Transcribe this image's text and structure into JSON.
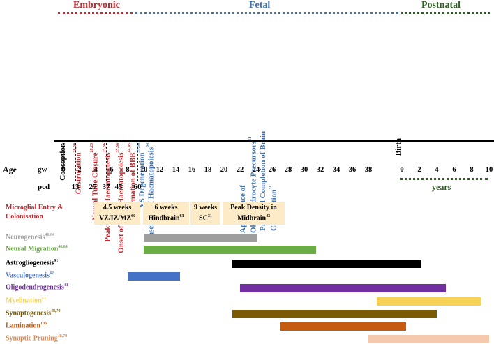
{
  "phases": [
    {
      "label": "Embryonic",
      "color": "#c0282d"
    },
    {
      "label": "Fetal",
      "color": "#3f73b3"
    },
    {
      "label": "Postnatal",
      "color": "#2f5f23"
    }
  ],
  "axis": {
    "age_label": "Age",
    "gw_label": "gw",
    "pcd_label": "pcd",
    "years_label": "years",
    "gw_ticks": [
      "0",
      "2",
      "4",
      "6",
      "8",
      "10",
      "12",
      "14",
      "16",
      "18",
      "20",
      "22",
      "24",
      "26",
      "28",
      "30",
      "32",
      "34",
      "36",
      "38"
    ],
    "year_ticks": [
      "0",
      "2",
      "4",
      "6",
      "8",
      "10"
    ],
    "pcd_values": [
      "13",
      "27",
      "37",
      "45",
      "60"
    ],
    "birth_label": "Birth"
  },
  "events": [
    {
      "text": "Conception",
      "ref": "",
      "color": "#000000"
    },
    {
      "text": "Gastrulation",
      "ref": "28,29",
      "color": "#c0282d"
    },
    {
      "text": "Neural Tube Closure",
      "ref": "28,29",
      "color": "#c0282d"
    },
    {
      "text": "Peak of YS Haematopoiesis",
      "ref": "35,36",
      "color": "#c0282d"
    },
    {
      "text": "Onset of Liver Haematopoiesis",
      "ref": "35,36",
      "color": "#c0282d"
    },
    {
      "text": "Formation of BBB",
      "ref": "44,45",
      "color": "#c0282d"
    },
    {
      "text": "YS Degeneration",
      "ref": "35,36",
      "color": "#3f73b3"
    },
    {
      "text": "Onset of BM Haematopoiesis",
      "ref": "34",
      "color": "#3f73b3"
    },
    {
      "text": "Appearance of Oligodendrocyte Precursors",
      "ref": "41",
      "color": "#3f73b3"
    },
    {
      "text": "Proposed Completion of Brain Colonisation",
      "ref": "31",
      "color": "#3f73b3"
    }
  ],
  "microglia": {
    "label_line1": "Microglial Entry &",
    "label_line2": "Colonisation",
    "label_color": "#c0282d",
    "box_color": "#fcebc6",
    "boxes": [
      {
        "line1": "4.5 weeks",
        "line2": "VZ/IZ/MZ",
        "ref": "60"
      },
      {
        "line1": "6 weeks",
        "line2": "Hindbrain",
        "ref": "63"
      },
      {
        "line1": "9 weeks",
        "line2": "SC",
        "ref": "31"
      },
      {
        "line1": "Peak Density in",
        "line2": "Midbrain",
        "ref": "43"
      }
    ]
  },
  "processes": [
    {
      "name": "Neurogenesis",
      "ref": "40,64",
      "color": "#9e9e9e",
      "start_gw": 10,
      "end_gw": 24.2
    },
    {
      "name": "Neural Migration",
      "ref": "40,64",
      "color": "#6aad45",
      "start_gw": 10,
      "end_gw": 31.5
    },
    {
      "name": "Astrogliogenesis",
      "ref": "91",
      "color": "#000000",
      "start_gw": 21,
      "end_gw": 2.2
    },
    {
      "name": "Vasculogenesis",
      "ref": "42",
      "color": "#4472c4",
      "start_gw": 8,
      "end_gw": 14.5
    },
    {
      "name": "Oligodendrogenesis",
      "ref": "41",
      "color": "#7030a0",
      "start_gw": 22,
      "end_gw": 5
    },
    {
      "name": "Myelination",
      "ref": "41",
      "color": "#f7d154",
      "start_gw": 39,
      "end_gw": 9
    },
    {
      "name": "Synaptogenesis",
      "ref": "48,70",
      "color": "#7a5b04",
      "start_gw": 21,
      "end_gw": 4
    },
    {
      "name": "Lamination",
      "ref": "106",
      "color": "#c55a11",
      "start_gw": 27,
      "end_gw": 0.5
    },
    {
      "name": "Synaptic Pruning",
      "ref": "48,70",
      "color": "#f4c9ad",
      "start_gw": 38,
      "end_gw": 10
    }
  ]
}
